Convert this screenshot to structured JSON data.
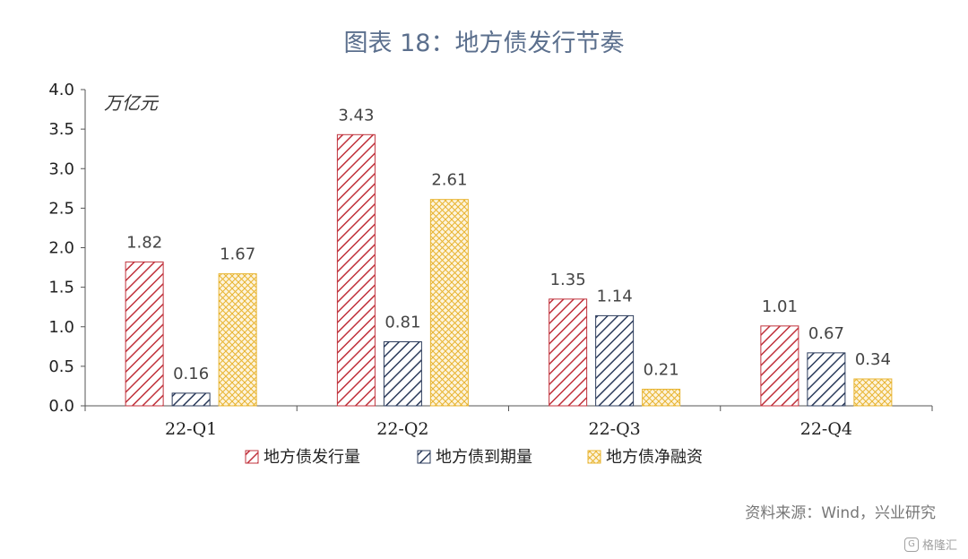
{
  "title": "图表 18：地方债发行节奏",
  "source": "资料来源：Wind，兴业研究",
  "watermark": "格隆汇",
  "chart_data": {
    "type": "bar",
    "unit_label": "万亿元",
    "categories": [
      "22-Q1",
      "22-Q2",
      "22-Q3",
      "22-Q4"
    ],
    "series": [
      {
        "name": "地方债发行量",
        "values": [
          1.82,
          3.43,
          1.35,
          1.01
        ],
        "color": "#c0313b",
        "pattern": "diagonal-left"
      },
      {
        "name": "地方债到期量",
        "values": [
          0.16,
          0.81,
          1.14,
          0.67
        ],
        "color": "#2c3c5c",
        "pattern": "diagonal-right"
      },
      {
        "name": "地方债净融资",
        "values": [
          1.67,
          2.61,
          0.21,
          0.34
        ],
        "color": "#e8b430",
        "pattern": "crosshatch"
      }
    ],
    "ylim": [
      0,
      4.0
    ],
    "yticks": [
      "0.0",
      "0.5",
      "1.0",
      "1.5",
      "2.0",
      "2.5",
      "3.0",
      "3.5",
      "4.0"
    ],
    "legend": "bottom",
    "grid": false
  }
}
